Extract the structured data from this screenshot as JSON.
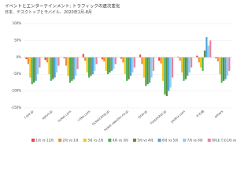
{
  "chart_data": {
    "type": "bar",
    "title": "イベントとエンターテインメント: トラフィックの逐次変化",
    "subtitle": "日本、デスクトップとモバイル、2020年1月-8月",
    "categories": [
      "t.pia.jp",
      "eplus.jp",
      "ticket.com",
      "l-tike.com",
      "ticketcamp.jp",
      "ticket.rakuten.co.jp",
      "tstar.jp",
      "livepocket.jp",
      "peatix.com",
      "その他",
      "others"
    ],
    "series": [
      {
        "name": "1月 vs 12月",
        "color": "#e8474c",
        "values": [
          -5,
          -8,
          -3,
          10,
          -6,
          -4,
          8,
          -10,
          2,
          5,
          -3
        ]
      },
      {
        "name": "2月 vs 1月",
        "color": "#f28b30",
        "values": [
          -20,
          -15,
          -25,
          -10,
          -12,
          -15,
          -20,
          -18,
          -10,
          -15,
          -12
        ]
      },
      {
        "name": "3月 vs 2月",
        "color": "#f5c518",
        "values": [
          -60,
          -50,
          -55,
          -45,
          -40,
          -50,
          -60,
          -70,
          -45,
          -30,
          -50
        ]
      },
      {
        "name": "4月 vs 3月",
        "color": "#4caf50",
        "values": [
          -80,
          -70,
          -75,
          -60,
          -50,
          -70,
          -85,
          -110,
          -70,
          -40,
          -75
        ]
      },
      {
        "name": "5月 vs 4月",
        "color": "#5b8c3a",
        "values": [
          -75,
          -65,
          -70,
          -55,
          -45,
          -65,
          -80,
          -115,
          -65,
          20,
          -70
        ]
      },
      {
        "name": "6月 vs 5月",
        "color": "#4aa3d8",
        "values": [
          -70,
          -60,
          -65,
          -50,
          -40,
          -55,
          -75,
          -100,
          -55,
          60,
          -65
        ]
      },
      {
        "name": "7月 vs 6月",
        "color": "#8fd0ef",
        "values": [
          -50,
          -45,
          -55,
          -40,
          -35,
          -45,
          -60,
          -90,
          -45,
          35,
          -55
        ]
      },
      {
        "name": "8月までの1月 vs 8月",
        "color": "#f07fa0",
        "values": [
          -30,
          -25,
          -35,
          -20,
          -20,
          -30,
          -40,
          -60,
          -30,
          50,
          -40
        ]
      }
    ],
    "ylim": [
      -150,
      100
    ],
    "yticks": [
      {
        "value": 100,
        "label": "100%"
      },
      {
        "value": 50,
        "label": "50%"
      },
      {
        "value": 0,
        "label": "0%"
      },
      {
        "value": -50,
        "label": "-50%"
      },
      {
        "value": -100,
        "label": "-100%"
      },
      {
        "value": -150,
        "label": "-150%"
      }
    ],
    "grid": true
  }
}
